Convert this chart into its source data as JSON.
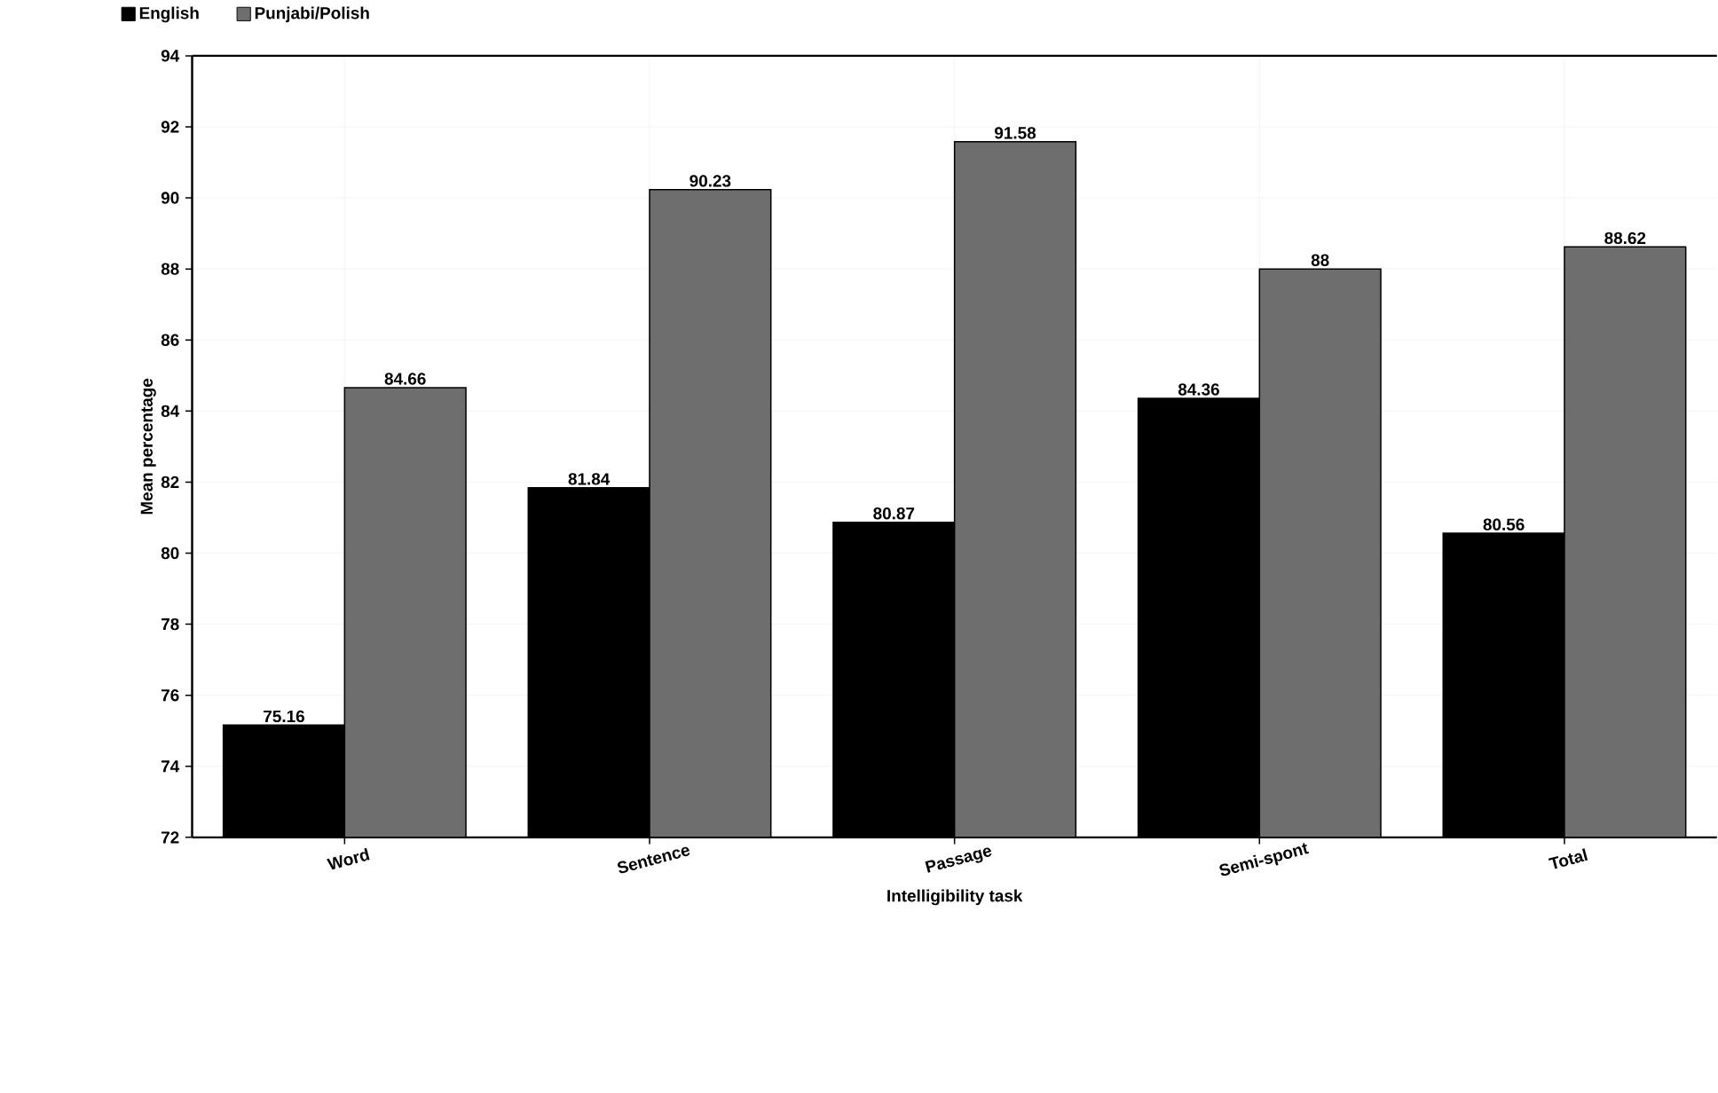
{
  "chart_data": {
    "type": "bar",
    "xlabel": "Intelligibility task",
    "ylabel": "Mean percentage",
    "categories": [
      "Word",
      "Sentence",
      "Passage",
      "Semi-spont",
      "Total"
    ],
    "series": [
      {
        "name": "English",
        "color": "#000000",
        "values": [
          75.16,
          81.84,
          80.87,
          84.36,
          80.56
        ]
      },
      {
        "name": "Punjabi/Polish",
        "color": "#6e6e6e",
        "values": [
          84.66,
          90.23,
          91.58,
          88,
          88.62
        ]
      }
    ],
    "ylim": [
      72,
      94
    ],
    "yticks": [
      72,
      74,
      76,
      78,
      80,
      82,
      84,
      86,
      88,
      90,
      92,
      94
    ],
    "grid": true,
    "legend": "top left",
    "data_labels": true
  }
}
